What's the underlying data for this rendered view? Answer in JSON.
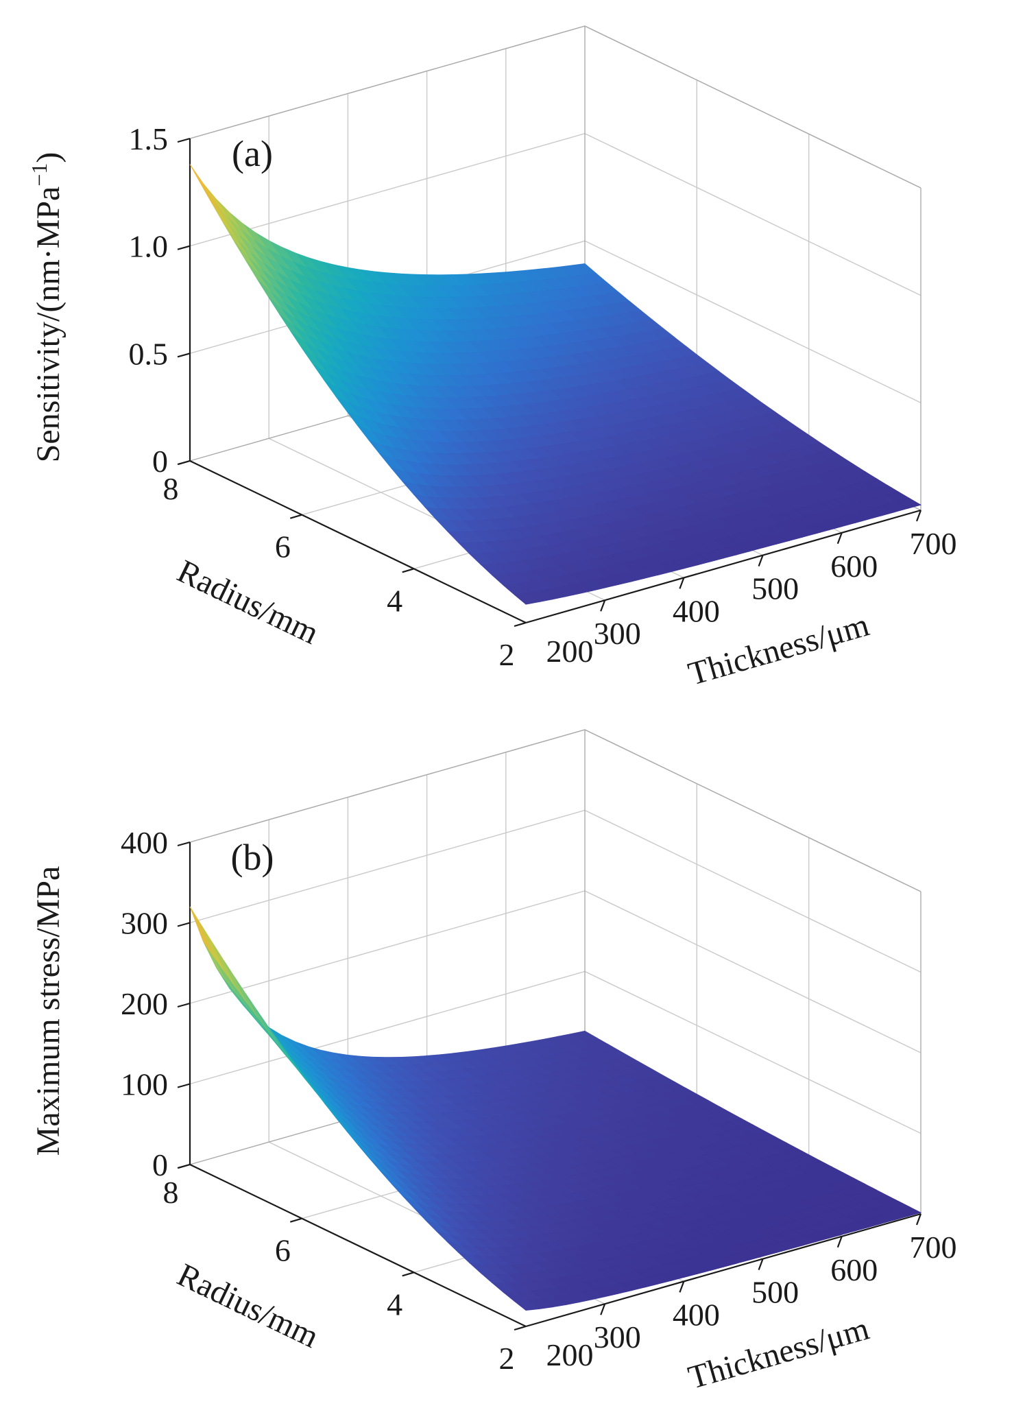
{
  "figure": {
    "background": "#ffffff",
    "text_color": "#1a1a1a",
    "grid_color": "#c9c9c9",
    "box_edge_color": "#aaaaaa",
    "axis_color": "#1a1a1a"
  },
  "colormap_stops": [
    [
      0.0,
      "#3b3191"
    ],
    [
      0.07,
      "#403e9e"
    ],
    [
      0.16,
      "#3f51b5"
    ],
    [
      0.26,
      "#2f72cf"
    ],
    [
      0.36,
      "#1e90d3"
    ],
    [
      0.46,
      "#17a8c3"
    ],
    [
      0.56,
      "#2bb6a3"
    ],
    [
      0.66,
      "#5fc184"
    ],
    [
      0.76,
      "#9cc95f"
    ],
    [
      0.85,
      "#d3c83f"
    ],
    [
      0.91,
      "#efae3b"
    ],
    [
      0.96,
      "#f4d839"
    ],
    [
      1.0,
      "#f2e93e"
    ]
  ],
  "chart_data": [
    {
      "type": "surface",
      "panel_label": "(a)",
      "xlabel": "Radius/mm",
      "ylabel": "Thickness/μm",
      "zlabel_parts": {
        "pre": "Sensitivity/(nm·MPa",
        "sup": "−1",
        "post": ")"
      },
      "x_ticks": [
        "8",
        "6",
        "4",
        "2"
      ],
      "x_tick_values": [
        8,
        6,
        4,
        2
      ],
      "y_ticks": [
        "200",
        "300",
        "400",
        "500",
        "600",
        "700"
      ],
      "y_tick_values": [
        200,
        300,
        400,
        500,
        600,
        700
      ],
      "z_ticks": [
        "0",
        "0.5",
        "1.0",
        "1.5"
      ],
      "z_tick_values": [
        0,
        0.5,
        1.0,
        1.5
      ],
      "xlim": [
        2,
        8
      ],
      "ylim": [
        200,
        700
      ],
      "zlim": [
        0,
        1.5
      ],
      "grid": true,
      "radius": [
        8,
        7,
        6,
        5,
        4,
        3,
        2
      ],
      "thickness": [
        200,
        300,
        400,
        500,
        600,
        700
      ],
      "values": [
        [
          1.38,
          0.92,
          0.69,
          0.552,
          0.46,
          0.394
        ],
        [
          1.057,
          0.704,
          0.528,
          0.423,
          0.352,
          0.302
        ],
        [
          0.776,
          0.518,
          0.388,
          0.311,
          0.259,
          0.222
        ],
        [
          0.539,
          0.359,
          0.27,
          0.216,
          0.18,
          0.154
        ],
        [
          0.345,
          0.23,
          0.173,
          0.138,
          0.115,
          0.099
        ],
        [
          0.194,
          0.129,
          0.097,
          0.078,
          0.065,
          0.055
        ],
        [
          0.086,
          0.058,
          0.043,
          0.035,
          0.029,
          0.025
        ]
      ],
      "interp": {
        "r_power": 2,
        "t_power": 1
      },
      "cmax": 1.4
    },
    {
      "type": "surface",
      "panel_label": "(b)",
      "xlabel": "Radius/mm",
      "ylabel": "Thickness/μm",
      "zlabel_parts": {
        "pre": "Maximum stress/MPa",
        "sup": "",
        "post": ""
      },
      "x_ticks": [
        "8",
        "6",
        "4",
        "2"
      ],
      "x_tick_values": [
        8,
        6,
        4,
        2
      ],
      "y_ticks": [
        "200",
        "300",
        "400",
        "500",
        "600",
        "700"
      ],
      "y_tick_values": [
        200,
        300,
        400,
        500,
        600,
        700
      ],
      "z_ticks": [
        "0",
        "100",
        "200",
        "300",
        "400"
      ],
      "z_tick_values": [
        0,
        100,
        200,
        300,
        400
      ],
      "xlim": [
        2,
        8
      ],
      "ylim": [
        200,
        700
      ],
      "zlim": [
        0,
        400
      ],
      "grid": true,
      "radius": [
        8,
        7,
        6,
        5,
        4,
        3,
        2
      ],
      "thickness": [
        200,
        300,
        400,
        500,
        600,
        700
      ],
      "values": [
        [
          320.0,
          142.2,
          80.0,
          51.2,
          35.6,
          26.1
        ],
        [
          245.0,
          108.9,
          61.3,
          39.2,
          27.2,
          20.0
        ],
        [
          180.0,
          80.0,
          45.0,
          28.8,
          20.0,
          14.7
        ],
        [
          125.0,
          55.6,
          31.3,
          20.0,
          13.9,
          10.2
        ],
        [
          80.0,
          35.6,
          20.0,
          12.8,
          8.9,
          6.5
        ],
        [
          45.0,
          20.0,
          11.3,
          7.2,
          5.0,
          3.7
        ],
        [
          20.0,
          8.9,
          5.0,
          3.2,
          2.2,
          1.6
        ]
      ],
      "interp": {
        "r_power": 2,
        "t_power": 2
      },
      "cmax": 330
    }
  ]
}
